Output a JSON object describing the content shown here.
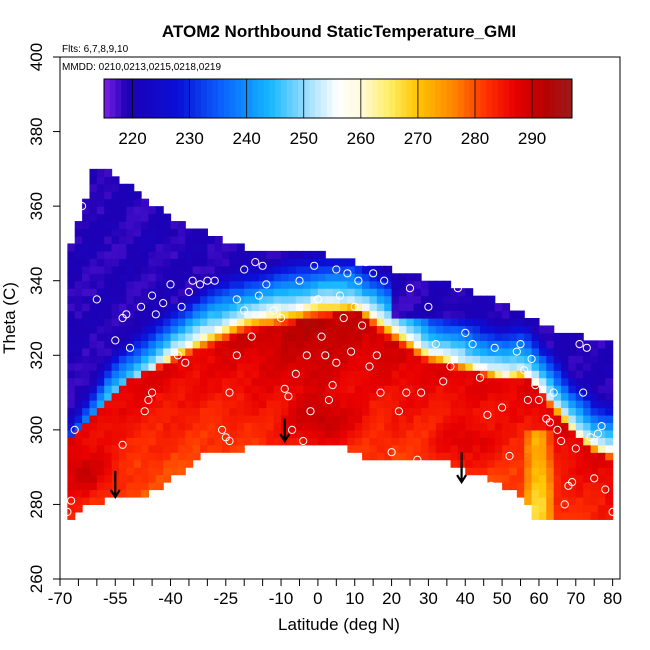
{
  "chart_data": {
    "type": "heatmap",
    "title": "ATOM2 Northbound StaticTemperature_GMI",
    "annotations": [
      "Flts: 6,7,8,9,10",
      "MMDD: 0210,0213,0215,0218,0219"
    ],
    "xlabel": "Latitude (deg N)",
    "ylabel": "Theta (C)",
    "xlim": [
      -70,
      82
    ],
    "ylim": [
      260,
      400
    ],
    "xticks": [
      -70,
      -55,
      -40,
      -25,
      -10,
      0,
      10,
      20,
      30,
      40,
      50,
      60,
      70,
      80
    ],
    "xtick_labels": [
      "-70",
      "-55",
      "-40",
      "-25",
      "-10",
      "0",
      "10",
      "20",
      "30",
      "40",
      "50",
      "60",
      "70",
      "80"
    ],
    "xminor_step": 5,
    "yticks": [
      260,
      280,
      300,
      320,
      340,
      360,
      380,
      400
    ],
    "ytick_labels": [
      "260",
      "280",
      "300",
      "320",
      "340",
      "360",
      "380",
      "400"
    ],
    "colorbar": {
      "min": 215,
      "max": 297,
      "ticks": [
        220,
        230,
        240,
        250,
        260,
        270,
        280,
        290
      ],
      "tick_labels": [
        "220",
        "230",
        "240",
        "250",
        "260",
        "270",
        "280",
        "290"
      ],
      "color_stops": [
        {
          "v": 215,
          "c": "#7b22e8"
        },
        {
          "v": 219,
          "c": "#1e00b4"
        },
        {
          "v": 228,
          "c": "#0a10d8"
        },
        {
          "v": 236,
          "c": "#0a66ff"
        },
        {
          "v": 244,
          "c": "#15b6ff"
        },
        {
          "v": 251,
          "c": "#a6e1ff"
        },
        {
          "v": 256,
          "c": "#ffffff"
        },
        {
          "v": 260,
          "c": "#fffadc"
        },
        {
          "v": 265,
          "c": "#ffee66"
        },
        {
          "v": 270,
          "c": "#ffc400"
        },
        {
          "v": 276,
          "c": "#ff8800"
        },
        {
          "v": 282,
          "c": "#ff3000"
        },
        {
          "v": 287,
          "c": "#e80000"
        },
        {
          "v": 292,
          "c": "#b80000"
        },
        {
          "v": 297,
          "c": "#9b1b1b"
        }
      ]
    },
    "field": {
      "lat_min": -68,
      "lat_max": 80,
      "lat_step": 2,
      "theta_step": 2,
      "top_boundary": {
        "lat": [
          -68,
          -63,
          -62,
          -56,
          -40,
          -20,
          -5,
          5,
          20,
          40,
          55,
          65,
          75,
          80
        ],
        "theta": [
          346,
          362,
          370,
          368,
          356,
          348,
          348,
          345,
          342,
          337,
          331,
          326,
          323,
          323
        ]
      },
      "bottom_boundary": {
        "lat": [
          -68,
          -62,
          -55,
          -45,
          -30,
          -10,
          2,
          15,
          35,
          50,
          56,
          59,
          80
        ],
        "theta": [
          277,
          281,
          283,
          284,
          295,
          297,
          298,
          293,
          292,
          286,
          283,
          277,
          277
        ]
      }
    },
    "temperature_profile": {
      "lat": [
        -68,
        -62,
        -56,
        -50,
        -45,
        -40,
        -30,
        -20,
        -10,
        0,
        10,
        20,
        30,
        40,
        50,
        56,
        60,
        65,
        70,
        75,
        80
      ],
      "theta_warm": [
        297,
        303,
        310,
        314,
        316,
        318,
        322,
        326,
        328,
        330,
        332,
        324,
        318,
        316,
        313,
        314,
        310,
        304,
        298,
        294,
        292
      ],
      "theta_trop": [
        288,
        297,
        307,
        312,
        316,
        320,
        326,
        330,
        332,
        334,
        334,
        328,
        321,
        318,
        315,
        316,
        312,
        306,
        300,
        296,
        294
      ]
    },
    "flight_points": {
      "lat": [
        -68,
        -67,
        -66,
        -64,
        -60,
        -55,
        -53,
        -52,
        -51,
        -48,
        -47,
        -46,
        -45,
        -44,
        -42,
        -40,
        -38,
        -37,
        -36,
        -34,
        -32,
        -30,
        -28,
        -26,
        -25,
        -24,
        -24,
        -22,
        -22,
        -20,
        -20,
        -18,
        -17,
        -16,
        -14,
        -12,
        -10,
        -9,
        -8,
        -7,
        -6,
        -5,
        -4,
        -3,
        -2,
        -1,
        0,
        1,
        2,
        3,
        4,
        5,
        6,
        7,
        8,
        9,
        10,
        11,
        12,
        13,
        14,
        15,
        16,
        17,
        18,
        20,
        22,
        24,
        25,
        27,
        28,
        30,
        32,
        34,
        36,
        38,
        40,
        42,
        44,
        46,
        47,
        48,
        50,
        52,
        54,
        55,
        56,
        57,
        58,
        59,
        60,
        62,
        63,
        64,
        65,
        66,
        67,
        68,
        69,
        70,
        71,
        72,
        73,
        74,
        75,
        76,
        77,
        78,
        79,
        80,
        -53,
        -45,
        -35,
        -15,
        5
      ],
      "theta": [
        278,
        281,
        300,
        360,
        335,
        324,
        330,
        331,
        322,
        333,
        305,
        308,
        310,
        331,
        334,
        339,
        320,
        333,
        318,
        340,
        339,
        340,
        340,
        300,
        298,
        297,
        310,
        320,
        335,
        332,
        343,
        325,
        345,
        336,
        339,
        332,
        330,
        311,
        309,
        300,
        315,
        340,
        297,
        320,
        305,
        344,
        335,
        325,
        320,
        308,
        312,
        318,
        336,
        330,
        342,
        321,
        333,
        340,
        328,
        345,
        317,
        342,
        320,
        310,
        340,
        294,
        305,
        310,
        338,
        292,
        310,
        333,
        323,
        313,
        317,
        338,
        326,
        323,
        314,
        304,
        285,
        322,
        306,
        293,
        321,
        323,
        316,
        308,
        319,
        312,
        308,
        303,
        302,
        310,
        300,
        297,
        280,
        285,
        286,
        295,
        323,
        310,
        322,
        298,
        287,
        299,
        301,
        284,
        327,
        278,
        296,
        336,
        337,
        344,
        343
      ],
      "color": "#ffffff"
    },
    "tropopause_arrows": [
      {
        "lat": -55,
        "theta_top": 289,
        "theta_bottom": 282
      },
      {
        "lat": -9,
        "theta_top": 303,
        "theta_bottom": 297
      },
      {
        "lat": 39,
        "theta_top": 294,
        "theta_bottom": 286
      }
    ]
  }
}
